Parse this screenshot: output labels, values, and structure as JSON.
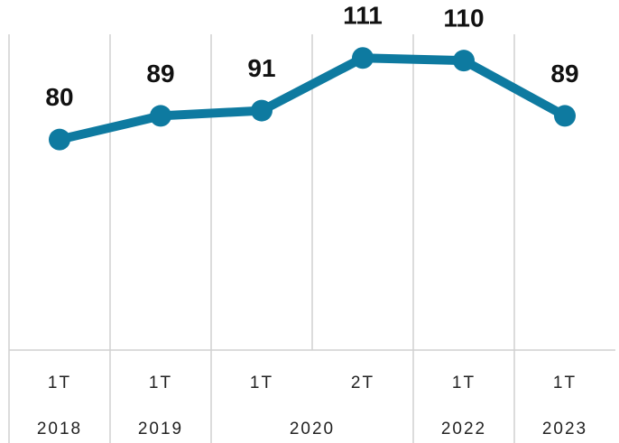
{
  "chart_data": {
    "type": "line",
    "categories": [
      "1T",
      "1T",
      "1T",
      "2T",
      "1T",
      "1T"
    ],
    "group_labels": [
      "2018",
      "2019",
      "2020",
      null,
      "2022",
      "2023"
    ],
    "series": [
      {
        "color": "#0e7aa0",
        "values": [
          80,
          89,
          91,
          111,
          110,
          89
        ]
      }
    ],
    "ylim": [
      0,
      120
    ],
    "grid": true
  }
}
